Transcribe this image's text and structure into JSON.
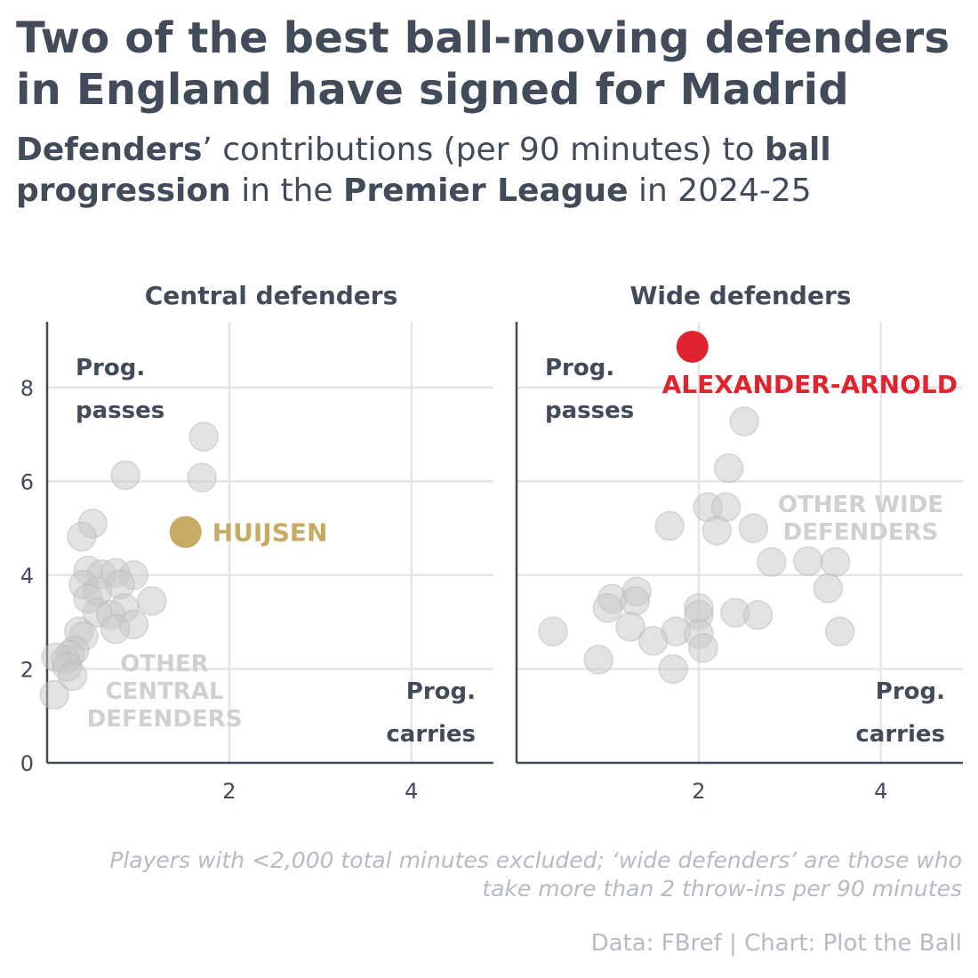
{
  "title": "Two of the best ball-moving defenders in England have signed for Madrid",
  "subtitle": {
    "part1": "Defenders",
    "part2": "’ contributions (per 90 minutes) to ",
    "part3": "ball progression",
    "part4": " in the ",
    "part5": "Premier League",
    "part6": " in 2024-25"
  },
  "note": "Players with <2,000 total minutes excluded; ‘wide defenders’ are those who take more than 2 throw-ins per 90 minutes",
  "source": "Data: FBref | Chart: Plot the Ball",
  "colors": {
    "highlight_central": "#c8ab62",
    "highlight_wide": "#e0242f",
    "other": "#c8c8c8",
    "axis": "#414b59",
    "grid": "#e5e5e5"
  },
  "chart_data": [
    {
      "type": "scatter",
      "title": "Central defenders",
      "xlabel": "Prog. carries",
      "ylabel": "Prog. passes",
      "xlim": [
        0,
        4.9
      ],
      "ylim": [
        0,
        9.4
      ],
      "x_ticks": [
        2,
        4
      ],
      "y_ticks": [
        0,
        2,
        4,
        6,
        8
      ],
      "grid": true,
      "series": [
        {
          "name": "HUIJSEN",
          "highlight": true,
          "points": [
            [
              1.52,
              4.92
            ]
          ]
        },
        {
          "name": "OTHER CENTRAL DEFENDERS",
          "highlight": false,
          "points": [
            [
              1.72,
              6.95
            ],
            [
              1.7,
              6.08
            ],
            [
              0.86,
              6.13
            ],
            [
              0.5,
              5.1
            ],
            [
              0.38,
              4.82
            ],
            [
              0.45,
              4.1
            ],
            [
              0.6,
              4.02
            ],
            [
              0.75,
              4.05
            ],
            [
              0.95,
              4.0
            ],
            [
              0.8,
              3.8
            ],
            [
              0.4,
              3.8
            ],
            [
              0.55,
              3.65
            ],
            [
              0.45,
              3.5
            ],
            [
              1.15,
              3.45
            ],
            [
              0.85,
              3.3
            ],
            [
              0.55,
              3.2
            ],
            [
              0.7,
              3.15
            ],
            [
              0.95,
              2.95
            ],
            [
              0.75,
              2.85
            ],
            [
              0.35,
              2.8
            ],
            [
              0.4,
              2.7
            ],
            [
              0.3,
              2.4
            ],
            [
              0.25,
              2.3
            ],
            [
              0.2,
              2.2
            ],
            [
              0.1,
              2.25
            ],
            [
              0.22,
              2.05
            ],
            [
              0.28,
              1.85
            ],
            [
              0.08,
              1.45
            ]
          ]
        }
      ]
    },
    {
      "type": "scatter",
      "title": "Wide defenders",
      "xlabel": "Prog. carries",
      "ylabel": "Prog. passes",
      "xlim": [
        0,
        4.9
      ],
      "ylim": [
        0,
        9.4
      ],
      "x_ticks": [
        2,
        4
      ],
      "y_ticks": [
        0,
        2,
        4,
        6,
        8
      ],
      "grid": true,
      "series": [
        {
          "name": "ALEXANDER-ARNOLD",
          "highlight": true,
          "points": [
            [
              1.93,
              8.87
            ]
          ]
        },
        {
          "name": "OTHER WIDE DEFENDERS",
          "highlight": false,
          "points": [
            [
              2.5,
              7.28
            ],
            [
              2.33,
              6.28
            ],
            [
              1.68,
              5.05
            ],
            [
              2.1,
              5.45
            ],
            [
              2.3,
              5.45
            ],
            [
              2.2,
              4.95
            ],
            [
              2.6,
              5.0
            ],
            [
              2.8,
              4.28
            ],
            [
              3.2,
              4.3
            ],
            [
              3.5,
              4.28
            ],
            [
              3.42,
              3.72
            ],
            [
              1.32,
              3.65
            ],
            [
              1.05,
              3.5
            ],
            [
              1.3,
              3.45
            ],
            [
              1.0,
              3.3
            ],
            [
              2.0,
              3.3
            ],
            [
              2.0,
              3.15
            ],
            [
              2.4,
              3.2
            ],
            [
              2.65,
              3.15
            ],
            [
              1.25,
              2.9
            ],
            [
              1.75,
              2.8
            ],
            [
              2.0,
              2.75
            ],
            [
              3.55,
              2.8
            ],
            [
              0.4,
              2.8
            ],
            [
              1.5,
              2.6
            ],
            [
              2.05,
              2.45
            ],
            [
              0.9,
              2.2
            ],
            [
              1.72,
              2.0
            ]
          ]
        }
      ]
    }
  ],
  "panels": [
    {
      "title": "Central defenders",
      "corner_y": [
        "Prog.",
        "passes"
      ],
      "corner_x": [
        "Prog.",
        "carries"
      ],
      "highlight_label": "HUIJSEN",
      "other_label": [
        "OTHER",
        "CENTRAL",
        "DEFENDERS"
      ]
    },
    {
      "title": "Wide defenders",
      "corner_y": [
        "Prog.",
        "passes"
      ],
      "corner_x": [
        "Prog.",
        "carries"
      ],
      "highlight_label": "ALEXANDER-ARNOLD",
      "other_label": [
        "OTHER WIDE",
        "DEFENDERS"
      ]
    }
  ]
}
